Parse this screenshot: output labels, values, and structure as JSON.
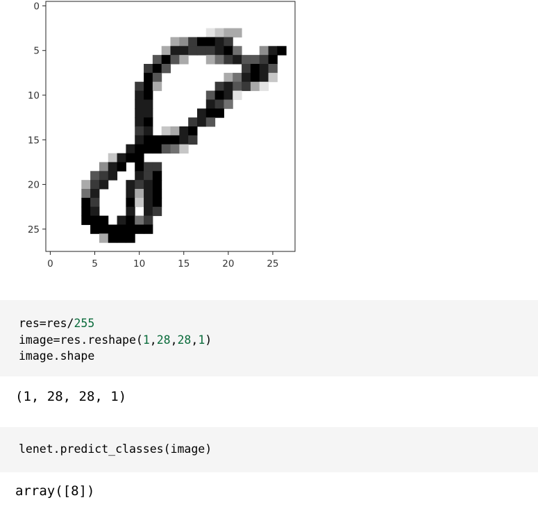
{
  "chart_data": {
    "type": "heatmap",
    "colormap": "gray_r",
    "rows": 28,
    "cols": 28,
    "xlim": [
      -0.5,
      27.5
    ],
    "ylim": [
      27.5,
      -0.5
    ],
    "xticks": [
      0,
      5,
      10,
      15,
      20,
      25
    ],
    "yticks": [
      0,
      5,
      10,
      15,
      20,
      25
    ],
    "xtick_labels": [
      "0",
      "5",
      "10",
      "15",
      "20",
      "25"
    ],
    "ytick_labels": [
      "0",
      "5",
      "10",
      "15",
      "20",
      "25"
    ],
    "title": "",
    "xlabel": "",
    "ylabel": "",
    "grid": false,
    "pixels": [
      "............................",
      "............................",
      "............................",
      "..................1233......",
      "..............3479987.......",
      ".............388777895..489.",
      "............6963..35786679..",
      "...........796........7986..",
      "...........96.......358982..",
      "..........793......786731...",
      "..........89......6981......",
      "..........88......875.......",
      "..........88.....899........",
      "..........89....786.........",
      "..........78.2389...........",
      "..........8999987...........",
      ".........8999652............",
      ".......2899.................",
      "......489.977...............",
      ".....678..879...............",
      "....378..8789...............",
      "....58...8389...............",
      "....97...9289...............",
      "....98...8.87...............",
      "....999.8957................",
      ".....9999999................",
      "......3999..................",
      "............................"
    ]
  },
  "code_cell_1": {
    "line1_text": "res=res/",
    "line1_num": "255",
    "line2_text": "image=res.reshape(",
    "line2_a": "1",
    "line2_b": "28",
    "line2_c": "28",
    "line2_d": "1",
    "line3": "image.shape"
  },
  "output_1": "(1, 28, 28, 1)",
  "code_cell_2": "lenet.predict_classes(image)",
  "output_2": "array([8])"
}
